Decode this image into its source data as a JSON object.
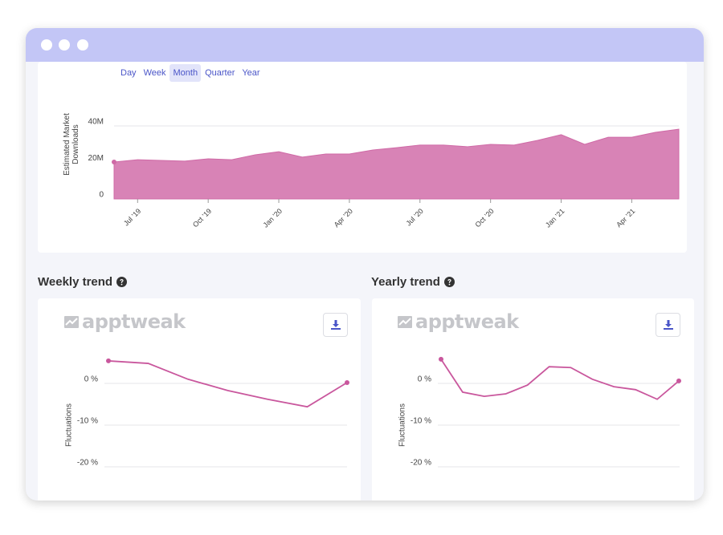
{
  "tabs": [
    "Day",
    "Week",
    "Month",
    "Quarter",
    "Year"
  ],
  "active_tab": 2,
  "chart_data": [
    {
      "type": "area",
      "y_label": "Estimated Market Downloads",
      "color": "#d883b6",
      "line_color": "#cf6aa6",
      "categories": [
        null,
        "Jul ’19",
        null,
        null,
        "Oct ’19",
        null,
        null,
        "Jan ’20",
        null,
        null,
        "Apr ’20",
        null,
        null,
        "Jul ’20",
        null,
        null,
        "Oct ’20",
        null,
        null,
        "Jan ’21",
        null,
        null,
        "Apr ’21",
        null,
        null
      ],
      "values": [
        20200000,
        21500000,
        21100000,
        20700000,
        22000000,
        21500000,
        24200000,
        25900000,
        22900000,
        24600000,
        24600000,
        26800000,
        28100000,
        29500000,
        29500000,
        28600000,
        29900000,
        29500000,
        32100000,
        35200000,
        29900000,
        33800000,
        33800000,
        36500000,
        38200000
      ],
      "ylim": [
        0,
        60000000
      ],
      "yticks": [
        0,
        {
          "value": 20000000,
          "label": "20M"
        },
        {
          "value": 40000000,
          "label": "40M"
        }
      ],
      "grid": true
    },
    {
      "type": "line",
      "title": "Weekly trend",
      "watermark": "apptweak",
      "y_label": "Fluctuations",
      "color": "#c9579d",
      "values": [
        5.4,
        4.8,
        1.0,
        -1.7,
        -3.8,
        -5.6,
        0.2
      ],
      "ylim": [
        -23,
        10
      ],
      "yticks": [
        {
          "value": 0,
          "label": "0 %"
        },
        {
          "value": -10,
          "label": "-10 %"
        },
        {
          "value": -20,
          "label": "-20 %"
        }
      ],
      "grid": true
    },
    {
      "type": "line",
      "title": "Yearly trend",
      "watermark": "apptweak",
      "y_label": "Fluctuations",
      "color": "#c9579d",
      "values": [
        5.8,
        -2.1,
        -3.1,
        -2.5,
        -0.4,
        4.0,
        3.8,
        1.0,
        -0.8,
        -1.5,
        -3.8,
        0.6
      ],
      "ylim": [
        -23,
        10
      ],
      "yticks": [
        {
          "value": 0,
          "label": "0 %"
        },
        {
          "value": -10,
          "label": "-10 %"
        },
        {
          "value": -20,
          "label": "-20 %"
        }
      ],
      "grid": true
    }
  ]
}
